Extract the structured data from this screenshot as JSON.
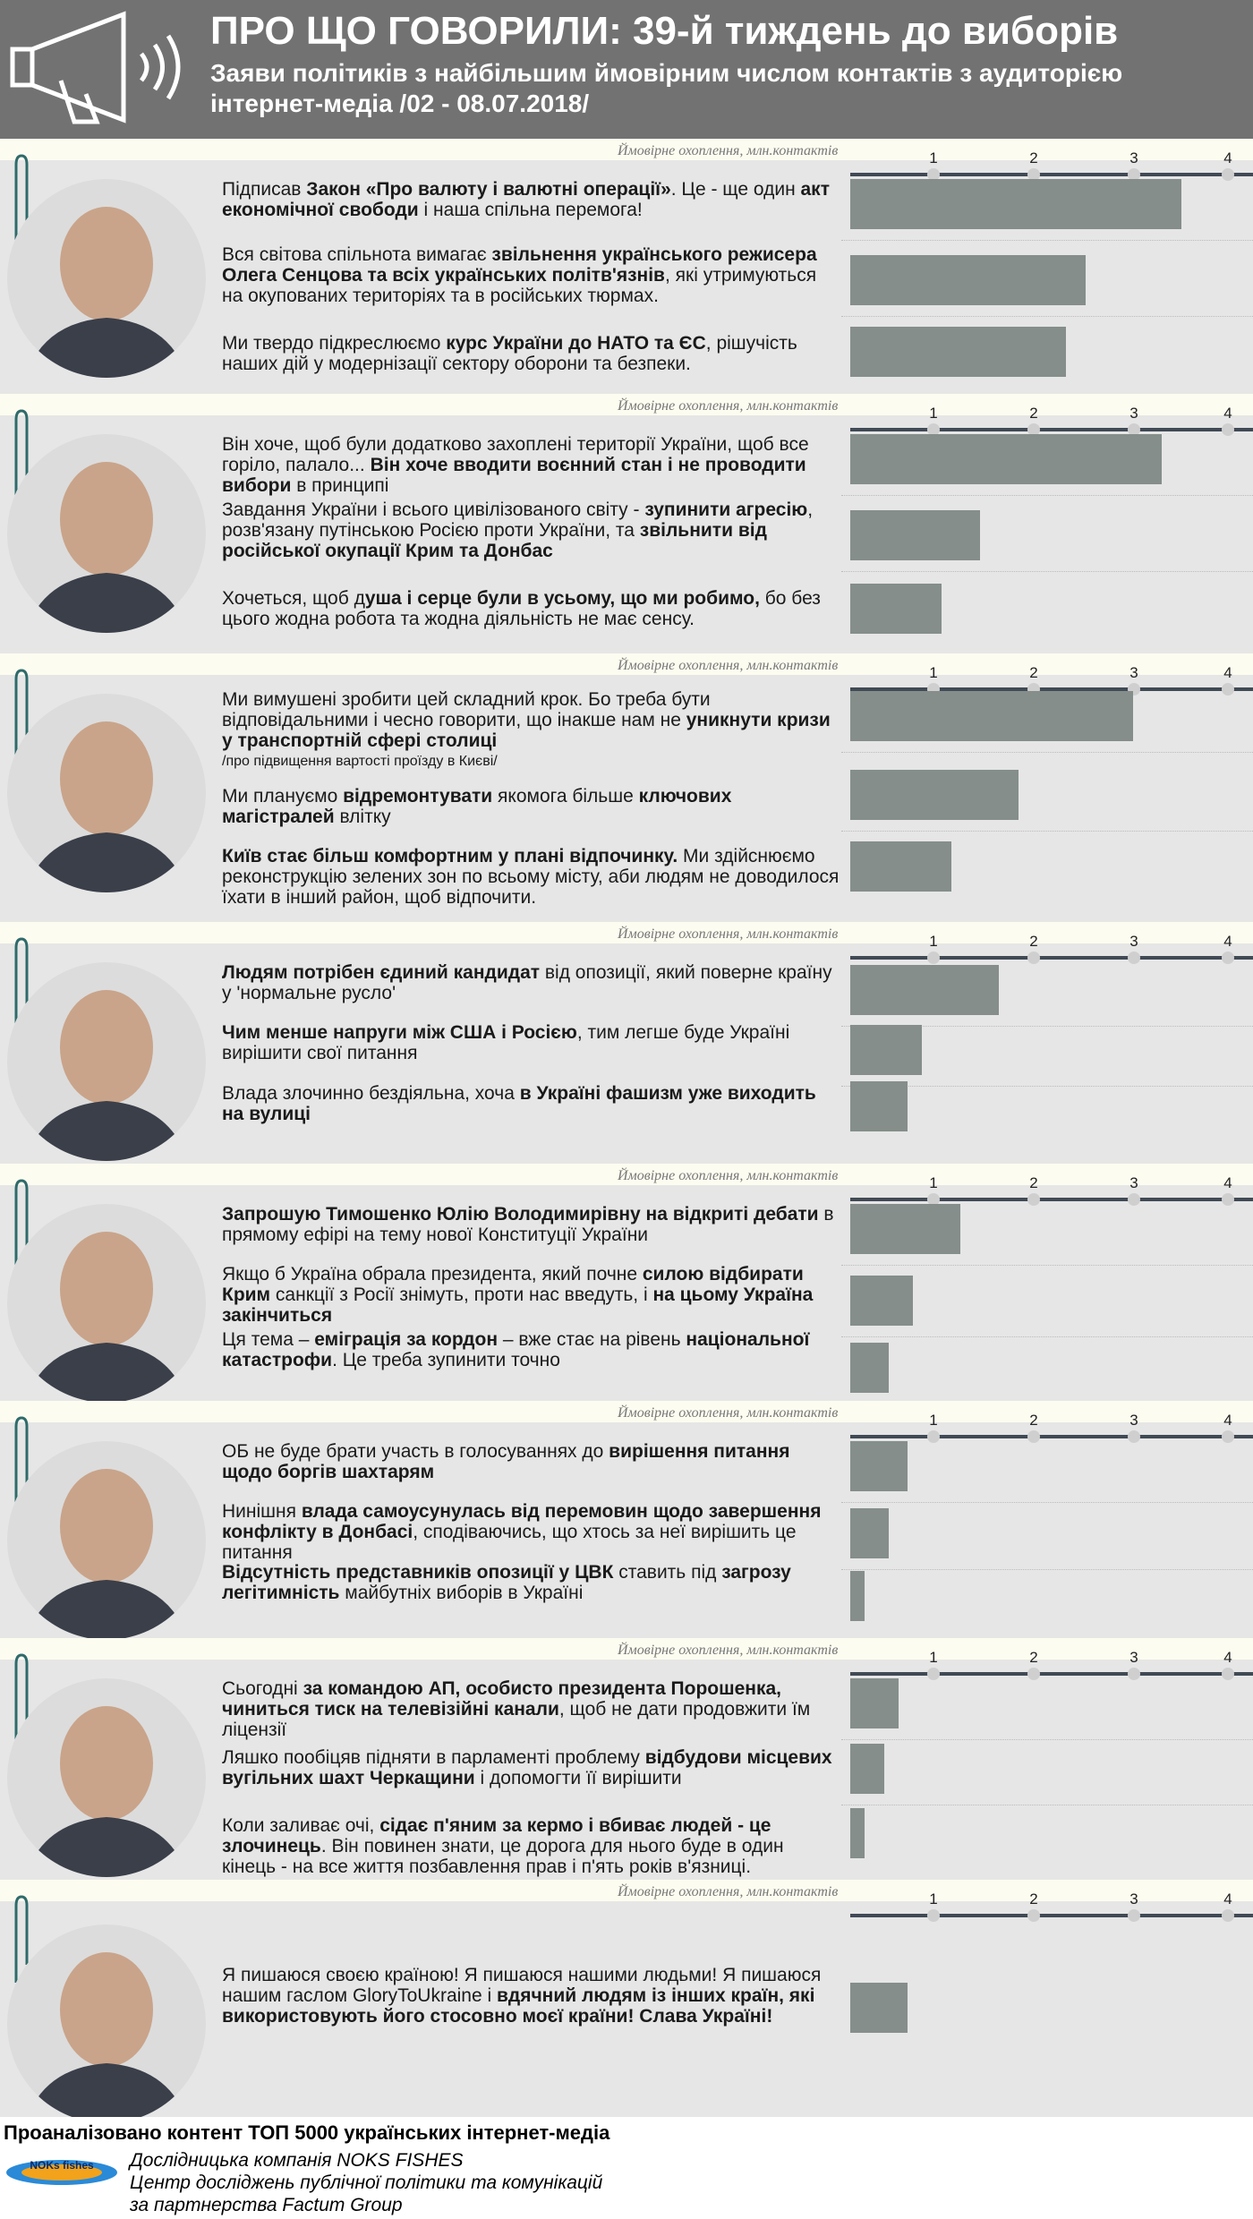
{
  "header": {
    "title": "ПРО ЩО ГОВОРИЛИ: 39-й тиждень до виборів",
    "subtitle": "Заяви політиків з найбільшим ймовірним числом контактів з аудиторією інтернет-медіа /02 - 08.07.2018/",
    "icon": "megaphone-icon"
  },
  "axis": {
    "caption": "Ймовірне охоплення, млн.контактів",
    "ticks": [
      "1",
      "2",
      "3",
      "4"
    ]
  },
  "sections": [
    {
      "photo": "portrait-1",
      "quotes": [
        [
          [
            "Підписав ",
            false
          ],
          [
            "Закон «Про валюту і валютні операції»",
            true
          ],
          [
            ". Це - ще один ",
            false
          ],
          [
            "акт економічної свободи",
            true
          ],
          [
            " і наша спільна перемога!",
            false
          ]
        ],
        [
          [
            "Вся світова спільнота вимагає ",
            false
          ],
          [
            "звільнення українського режисера Олега Сенцова та всіх українських політв'язнів",
            true
          ],
          [
            ", які утримуються на окупованих територіях та в російських тюрмах.",
            false
          ]
        ],
        [
          [
            "Ми твердо підкреслюємо ",
            false
          ],
          [
            "курс України до НАТО та ЄС",
            true
          ],
          [
            ", рішучість наших дій у модернізації сектору оборони та безпеки.",
            false
          ]
        ]
      ]
    },
    {
      "photo": "portrait-2",
      "quotes": [
        [
          [
            "Він хоче, щоб були додатково захоплені території України, щоб все горіло, палало... ",
            false
          ],
          [
            "Він хоче вводити воєнний стан і не проводити вибори",
            true
          ],
          [
            " в принципі",
            false
          ]
        ],
        [
          [
            "Завдання України і всього цивілізованого світу - ",
            false
          ],
          [
            "зупинити агресію",
            true
          ],
          [
            ", розв'язану путінською Росією проти України, та ",
            false
          ],
          [
            "звільнити від російської окупації Крим та Донбас",
            true
          ]
        ],
        [
          [
            "Хочеться, щоб д",
            false
          ],
          [
            "уша і серце були в усьому, що ми робимо,",
            true
          ],
          [
            " бо без цього жодна робота та жодна діяльність не має сенсу.",
            false
          ]
        ]
      ]
    },
    {
      "photo": "portrait-3",
      "quotes": [
        [
          [
            "Ми вимушені зробити цей складний крок. Бо треба бути відповідальними і чесно говорити, що інакше нам не ",
            false
          ],
          [
            "уникнути кризи у транспортній сфері столиці",
            true
          ]
        ],
        [
          [
            "Ми плануємо ",
            false
          ],
          [
            "відремонтувати",
            true
          ],
          [
            " якомога більше ",
            false
          ],
          [
            "ключових магістралей",
            true
          ],
          [
            " влітку",
            false
          ]
        ],
        [
          [
            "Київ стає більш комфортним у плані відпочинку.",
            true
          ],
          [
            " Ми здійснюємо реконструкцію зелених зон по всьому місту, аби людям не доводилося їхати в інший район, щоб відпочити.",
            false
          ]
        ]
      ],
      "note": "/про підвищення вартості проїзду в Києві/"
    },
    {
      "photo": "portrait-4",
      "quotes": [
        [
          [
            "Людям потрібен єдиний кандидат",
            true
          ],
          [
            " від опозиції, який поверне країну у 'нормальне русло'",
            false
          ]
        ],
        [
          [
            "Чим менше напруги між США і Росією",
            true
          ],
          [
            ", тим легше буде Україні вирішити свої питання",
            false
          ]
        ],
        [
          [
            "Влада злочинно бездіяльна, хоча ",
            false
          ],
          [
            "в Україні фашизм уже виходить на вулиці",
            true
          ]
        ]
      ]
    },
    {
      "photo": "portrait-5",
      "quotes": [
        [
          [
            "Запрошую Тимошенко Юлію Володимирівну на відкриті дебати",
            true
          ],
          [
            " в прямому ефірі на тему нової Конституції України",
            false
          ]
        ],
        [
          [
            "Якщо б Україна обрала президента, який почне ",
            false
          ],
          [
            "силою відбирати Крим",
            true
          ],
          [
            " санкції з Росії знімуть, проти нас введуть, і ",
            false
          ],
          [
            "на цьому Україна закінчиться",
            true
          ]
        ],
        [
          [
            "Ця тема – ",
            false
          ],
          [
            "еміграція за кордон",
            true
          ],
          [
            " – вже стає на рівень ",
            false
          ],
          [
            "національної катастрофи",
            true
          ],
          [
            ". Це треба зупинити точно",
            false
          ]
        ]
      ]
    },
    {
      "photo": "portrait-6",
      "quotes": [
        [
          [
            "ОБ не буде брати участь в голосуваннях до ",
            false
          ],
          [
            "вирішення питання щодо боргів шахтарям",
            true
          ]
        ],
        [
          [
            "Нинішня ",
            false
          ],
          [
            "влада самоусунулась від перемовин щодо завершення конфлікту в Донбасі",
            true
          ],
          [
            ", сподіваючись, що хтось за неї вирішить це питання",
            false
          ]
        ],
        [
          [
            "Відсутність представників опозиції у ЦВК",
            true
          ],
          [
            " ставить під ",
            false
          ],
          [
            "загрозу легітимність",
            true
          ],
          [
            " майбутніх виборів в Україні",
            false
          ]
        ]
      ]
    },
    {
      "photo": "portrait-7",
      "quotes": [
        [
          [
            "Сьогодні ",
            false
          ],
          [
            "за командою АП, особисто президента Порошенка, чиниться тиск на телевізійні канали",
            true
          ],
          [
            ", щоб не дати продовжити їм ліцензії",
            false
          ]
        ],
        [
          [
            "Ляшко пообіцяв підняти в парламенті проблему ",
            false
          ],
          [
            "відбудови місцевих вугільних шахт Черкащини",
            true
          ],
          [
            " і допомогти її вирішити",
            false
          ]
        ],
        [
          [
            "Коли заливає очі, ",
            false
          ],
          [
            "сідає п'яним за кермо і вбиває людей - це злочинець",
            true
          ],
          [
            ". Він повинен знати, це дорога для нього буде в один кінець - на все життя позбавлення прав і п'ять років в'язниці.",
            false
          ]
        ]
      ]
    },
    {
      "photo": "portrait-8",
      "quotes": [
        [
          [
            "Я пишаюся своєю країною! Я пишаюся нашими людьми! Я пишаюся нашим гаслом GloryToUkraine і ",
            false
          ],
          [
            "вдячний людям із інших країн, які використовують його стосовно моєї країни! Слава Україні!",
            true
          ]
        ]
      ]
    }
  ],
  "chart_data": {
    "type": "bar",
    "orientation": "horizontal",
    "xlabel": "Ймовірне охоплення, млн.контактів",
    "xticks": [
      1,
      2,
      3,
      4
    ],
    "xlim": [
      0.4,
      4.6
    ],
    "groups": [
      {
        "values": [
          3.85,
          2.85,
          2.65
        ]
      },
      {
        "values": [
          3.65,
          1.75,
          1.35
        ]
      },
      {
        "values": [
          3.35,
          2.15,
          1.45
        ]
      },
      {
        "values": [
          1.95,
          1.15,
          1.0
        ]
      },
      {
        "values": [
          1.55,
          1.05,
          0.8
        ]
      },
      {
        "values": [
          1.0,
          0.8,
          0.55
        ]
      },
      {
        "values": [
          0.9,
          0.75,
          0.55
        ]
      },
      {
        "values": [
          1.0
        ]
      }
    ],
    "bar_color": "#858e8a"
  },
  "footer": {
    "title": "Проаналізовано контент ТОП 5000 українських інтернет-медіа",
    "lines": [
      "Дослідницька компанія NOKS FISHES",
      "Центр досліджень публічної політики та комунікацій",
      "за партнерства Factum Group"
    ],
    "logo_text": "NOKs fishes"
  }
}
